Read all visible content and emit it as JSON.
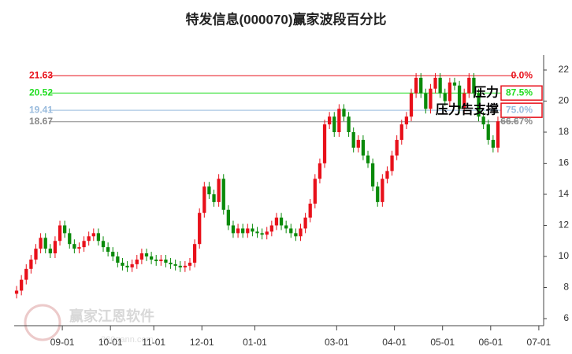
{
  "chart_data": {
    "type": "candlestick",
    "title": "特发信息(000070)赢家波段百分比",
    "watermark": "赢家江恩软件",
    "watermark_url": "360gann.com",
    "up_color": "#e8101a",
    "down_color": "#0a8a0a",
    "xlim": [
      0,
      110
    ],
    "xticks": [
      {
        "value": 10,
        "label": "09-01"
      },
      {
        "value": 20,
        "label": "10-01"
      },
      {
        "value": 29,
        "label": "11-01"
      },
      {
        "value": 39,
        "label": "12-01"
      },
      {
        "value": 50,
        "label": "01-01"
      },
      {
        "value": 67,
        "label": "03-01"
      },
      {
        "value": 79,
        "label": "04-01"
      },
      {
        "value": 89,
        "label": "05-01"
      },
      {
        "value": 99,
        "label": "06-01"
      },
      {
        "value": 109,
        "label": "07-01"
      }
    ],
    "ylim": [
      6,
      22
    ],
    "yticks": [
      6,
      8,
      10,
      12,
      14,
      16,
      18,
      20,
      22
    ],
    "levels": [
      {
        "value": 21.63,
        "pct": 0,
        "pct_label": "0.0%",
        "color": "#e8101a",
        "boxed": false
      },
      {
        "value": 20.52,
        "pct": 87.5,
        "pct_label": "87.5%",
        "color": "#22dd22",
        "boxed": true
      },
      {
        "value": 19.41,
        "pct": 75,
        "pct_label": "75.0%",
        "color": "#99bbdd",
        "boxed": true
      },
      {
        "value": 18.67,
        "pct": 66.67,
        "pct_label": "66.67%",
        "color": "#888888",
        "boxed": false
      }
    ],
    "annotations": [
      "压力",
      "压力告支撑"
    ],
    "candles": [
      [
        7.6,
        8.1,
        7.3,
        7.8
      ],
      [
        7.8,
        8.8,
        7.5,
        8.5
      ],
      [
        8.5,
        9.5,
        8.2,
        9.2
      ],
      [
        9.2,
        10.1,
        8.9,
        9.8
      ],
      [
        9.8,
        10.8,
        9.5,
        10.5
      ],
      [
        10.5,
        11.5,
        10.2,
        11.2
      ],
      [
        11.2,
        11.5,
        10.2,
        10.5
      ],
      [
        10.5,
        10.8,
        9.9,
        10.2
      ],
      [
        10.2,
        11.3,
        9.9,
        11.0
      ],
      [
        11.0,
        12.3,
        10.7,
        12.0
      ],
      [
        12.0,
        12.3,
        11.2,
        11.5
      ],
      [
        11.5,
        11.8,
        10.5,
        10.8
      ],
      [
        10.8,
        11.1,
        10.2,
        10.5
      ],
      [
        10.5,
        10.9,
        10.2,
        10.6
      ],
      [
        10.6,
        11.3,
        10.3,
        11.0
      ],
      [
        11.0,
        11.6,
        10.7,
        11.3
      ],
      [
        11.3,
        11.8,
        11.0,
        11.5
      ],
      [
        11.5,
        11.8,
        10.7,
        11.0
      ],
      [
        11.0,
        11.3,
        10.3,
        10.6
      ],
      [
        10.6,
        10.9,
        10.0,
        10.3
      ],
      [
        10.3,
        10.6,
        9.7,
        10.0
      ],
      [
        10.0,
        10.3,
        9.3,
        9.6
      ],
      [
        9.6,
        9.9,
        9.1,
        9.4
      ],
      [
        9.4,
        9.7,
        9.0,
        9.3
      ],
      [
        9.3,
        9.8,
        9.0,
        9.5
      ],
      [
        9.5,
        10.1,
        9.2,
        9.8
      ],
      [
        9.8,
        10.5,
        9.5,
        10.2
      ],
      [
        10.2,
        10.5,
        9.7,
        10.0
      ],
      [
        10.0,
        10.3,
        9.5,
        9.8
      ],
      [
        9.8,
        10.1,
        9.4,
        9.7
      ],
      [
        9.7,
        10.1,
        9.4,
        9.8
      ],
      [
        9.8,
        10.1,
        9.3,
        9.6
      ],
      [
        9.6,
        9.9,
        9.2,
        9.5
      ],
      [
        9.5,
        9.8,
        9.1,
        9.4
      ],
      [
        9.4,
        9.7,
        9.0,
        9.3
      ],
      [
        9.3,
        9.7,
        9.0,
        9.4
      ],
      [
        9.4,
        9.9,
        9.1,
        9.6
      ],
      [
        9.6,
        11.1,
        9.3,
        10.8
      ],
      [
        10.8,
        13.1,
        10.5,
        12.8
      ],
      [
        12.8,
        14.8,
        12.5,
        14.5
      ],
      [
        14.5,
        14.8,
        13.7,
        14.0
      ],
      [
        14.0,
        14.3,
        13.2,
        13.5
      ],
      [
        13.5,
        15.3,
        13.2,
        15.0
      ],
      [
        15.0,
        15.3,
        12.7,
        13.0
      ],
      [
        13.0,
        13.3,
        11.7,
        12.0
      ],
      [
        12.0,
        12.3,
        11.2,
        11.5
      ],
      [
        11.5,
        12.1,
        11.2,
        11.8
      ],
      [
        11.8,
        12.1,
        11.2,
        11.5
      ],
      [
        11.5,
        12.1,
        11.2,
        11.8
      ],
      [
        11.8,
        12.1,
        11.3,
        11.6
      ],
      [
        11.6,
        11.9,
        11.2,
        11.5
      ],
      [
        11.5,
        11.8,
        11.1,
        11.4
      ],
      [
        11.4,
        11.9,
        11.1,
        11.6
      ],
      [
        11.6,
        12.3,
        11.3,
        12.0
      ],
      [
        12.0,
        12.8,
        11.7,
        12.5
      ],
      [
        12.5,
        12.8,
        11.7,
        12.0
      ],
      [
        12.0,
        12.3,
        11.5,
        11.8
      ],
      [
        11.8,
        12.1,
        11.2,
        11.5
      ],
      [
        11.5,
        11.8,
        11.0,
        11.3
      ],
      [
        11.3,
        12.1,
        11.0,
        11.8
      ],
      [
        11.8,
        12.8,
        11.5,
        12.5
      ],
      [
        12.5,
        13.7,
        12.2,
        13.4
      ],
      [
        13.4,
        15.3,
        13.1,
        15.0
      ],
      [
        15.0,
        16.3,
        14.7,
        16.0
      ],
      [
        16.0,
        18.8,
        15.7,
        18.5
      ],
      [
        18.5,
        19.3,
        18.2,
        19.0
      ],
      [
        19.0,
        19.3,
        17.7,
        18.0
      ],
      [
        18.0,
        19.8,
        17.7,
        19.5
      ],
      [
        19.5,
        19.8,
        18.7,
        19.0
      ],
      [
        19.0,
        19.3,
        17.7,
        18.0
      ],
      [
        18.0,
        18.3,
        16.7,
        17.0
      ],
      [
        17.0,
        17.8,
        16.7,
        17.5
      ],
      [
        17.5,
        17.8,
        16.2,
        16.5
      ],
      [
        16.5,
        16.8,
        15.7,
        16.0
      ],
      [
        16.0,
        16.3,
        14.2,
        14.5
      ],
      [
        14.5,
        14.8,
        13.2,
        13.5
      ],
      [
        13.5,
        15.3,
        13.2,
        15.0
      ],
      [
        15.0,
        15.8,
        14.7,
        15.5
      ],
      [
        15.5,
        16.8,
        15.2,
        16.5
      ],
      [
        16.5,
        17.8,
        16.2,
        17.5
      ],
      [
        17.5,
        18.8,
        17.2,
        18.5
      ],
      [
        18.5,
        19.3,
        18.2,
        19.0
      ],
      [
        19.0,
        20.8,
        18.7,
        20.5
      ],
      [
        20.5,
        21.8,
        20.2,
        21.5
      ],
      [
        21.5,
        21.8,
        20.2,
        20.5
      ],
      [
        20.5,
        20.8,
        19.2,
        19.5
      ],
      [
        19.5,
        21.1,
        19.2,
        20.8
      ],
      [
        20.8,
        21.8,
        20.5,
        21.5
      ],
      [
        21.5,
        21.8,
        20.2,
        20.5
      ],
      [
        20.5,
        20.8,
        19.7,
        20.0
      ],
      [
        20.0,
        21.5,
        19.7,
        21.2
      ],
      [
        21.2,
        21.5,
        20.7,
        21.0
      ],
      [
        21.0,
        21.3,
        19.2,
        19.5
      ],
      [
        19.5,
        20.8,
        19.2,
        20.5
      ],
      [
        20.5,
        21.8,
        20.2,
        21.5
      ],
      [
        21.5,
        21.8,
        20.2,
        20.5
      ],
      [
        20.5,
        20.8,
        18.7,
        19.0
      ],
      [
        19.0,
        19.3,
        18.2,
        18.5
      ],
      [
        18.5,
        18.8,
        17.2,
        17.5
      ],
      [
        17.5,
        17.8,
        16.7,
        17.0
      ],
      [
        17.0,
        19.0,
        16.7,
        18.7
      ]
    ]
  }
}
